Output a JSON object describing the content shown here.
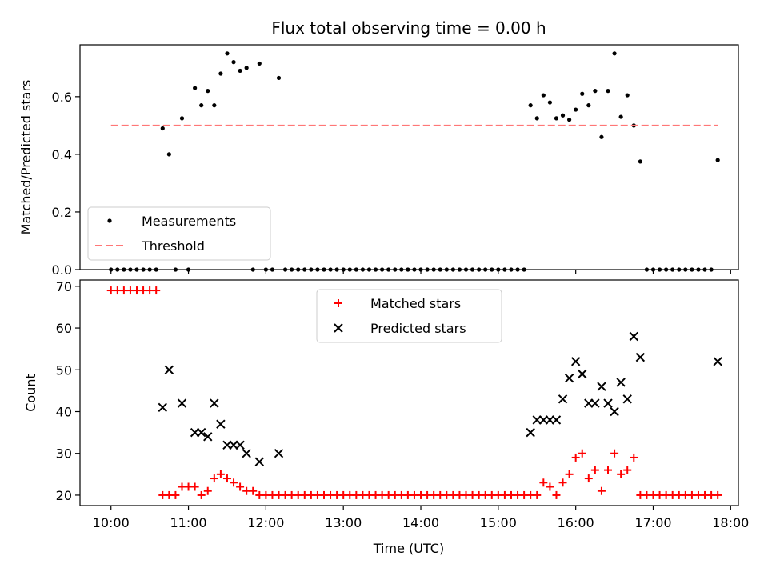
{
  "chart_data": [
    {
      "type": "scatter",
      "title": "Flux total observing time = 0.00 h",
      "xlabel": "",
      "ylabel": "Matched/Predicted stars",
      "xlim": [
        "09:36",
        "18:06"
      ],
      "ylim": [
        0,
        0.78
      ],
      "yticks": [
        0.0,
        0.2,
        0.4,
        0.6
      ],
      "grid": false,
      "legend_position": "lower-left",
      "series": [
        {
          "name": "Measurements",
          "kind": "scatter",
          "color": "#000000",
          "points": [
            [
              "10:00",
              0
            ],
            [
              "10:05",
              0
            ],
            [
              "10:10",
              0
            ],
            [
              "10:15",
              0
            ],
            [
              "10:20",
              0
            ],
            [
              "10:25",
              0
            ],
            [
              "10:30",
              0
            ],
            [
              "10:35",
              0
            ],
            [
              "10:40",
              0.49
            ],
            [
              "10:45",
              0.4
            ],
            [
              "10:50",
              0
            ],
            [
              "10:55",
              0.525
            ],
            [
              "11:00",
              0
            ],
            [
              "11:05",
              0.63
            ],
            [
              "11:10",
              0.57
            ],
            [
              "11:15",
              0.62
            ],
            [
              "11:20",
              0.57
            ],
            [
              "11:25",
              0.68
            ],
            [
              "11:30",
              0.75
            ],
            [
              "11:35",
              0.72
            ],
            [
              "11:40",
              0.69
            ],
            [
              "11:45",
              0.7
            ],
            [
              "11:50",
              0
            ],
            [
              "11:55",
              0.715
            ],
            [
              "12:00",
              0
            ],
            [
              "12:05",
              0
            ],
            [
              "12:10",
              0.665
            ],
            [
              "12:15",
              0
            ],
            [
              "12:20",
              0
            ],
            [
              "12:25",
              0
            ],
            [
              "12:30",
              0
            ],
            [
              "12:35",
              0
            ],
            [
              "12:40",
              0
            ],
            [
              "12:45",
              0
            ],
            [
              "12:50",
              0
            ],
            [
              "12:55",
              0
            ],
            [
              "13:00",
              0
            ],
            [
              "13:05",
              0
            ],
            [
              "13:10",
              0
            ],
            [
              "13:15",
              0
            ],
            [
              "13:20",
              0
            ],
            [
              "13:25",
              0
            ],
            [
              "13:30",
              0
            ],
            [
              "13:35",
              0
            ],
            [
              "13:40",
              0
            ],
            [
              "13:45",
              0
            ],
            [
              "13:50",
              0
            ],
            [
              "13:55",
              0
            ],
            [
              "14:00",
              0
            ],
            [
              "14:05",
              0
            ],
            [
              "14:10",
              0
            ],
            [
              "14:15",
              0
            ],
            [
              "14:20",
              0
            ],
            [
              "14:25",
              0
            ],
            [
              "14:30",
              0
            ],
            [
              "14:35",
              0
            ],
            [
              "14:40",
              0
            ],
            [
              "14:45",
              0
            ],
            [
              "14:50",
              0
            ],
            [
              "14:55",
              0
            ],
            [
              "15:00",
              0
            ],
            [
              "15:05",
              0
            ],
            [
              "15:10",
              0
            ],
            [
              "15:15",
              0
            ],
            [
              "15:20",
              0
            ],
            [
              "15:25",
              0.57
            ],
            [
              "15:30",
              0.525
            ],
            [
              "15:35",
              0.605
            ],
            [
              "15:40",
              0.58
            ],
            [
              "15:45",
              0.525
            ],
            [
              "15:50",
              0.535
            ],
            [
              "15:55",
              0.52
            ],
            [
              "16:00",
              0.555
            ],
            [
              "16:05",
              0.61
            ],
            [
              "16:10",
              0.57
            ],
            [
              "16:15",
              0.62
            ],
            [
              "16:20",
              0.46
            ],
            [
              "16:25",
              0.62
            ],
            [
              "16:30",
              0.75
            ],
            [
              "16:35",
              0.53
            ],
            [
              "16:40",
              0.605
            ],
            [
              "16:45",
              0.5
            ],
            [
              "16:50",
              0.375
            ],
            [
              "16:55",
              0
            ],
            [
              "17:00",
              0
            ],
            [
              "17:05",
              0
            ],
            [
              "17:10",
              0
            ],
            [
              "17:15",
              0
            ],
            [
              "17:20",
              0
            ],
            [
              "17:25",
              0
            ],
            [
              "17:30",
              0
            ],
            [
              "17:35",
              0
            ],
            [
              "17:40",
              0
            ],
            [
              "17:45",
              0
            ],
            [
              "17:50",
              0.38
            ]
          ]
        },
        {
          "name": "Threshold",
          "kind": "line",
          "style": "dashed",
          "color": "#ff7777",
          "points": [
            [
              "10:00",
              0.5
            ],
            [
              "17:50",
              0.5
            ]
          ]
        }
      ]
    },
    {
      "type": "scatter",
      "title": "",
      "xlabel": "Time (UTC)",
      "ylabel": "Count",
      "xlim": [
        "09:36",
        "18:06"
      ],
      "ylim": [
        17.5,
        71.5
      ],
      "yticks": [
        20,
        30,
        40,
        50,
        60,
        70
      ],
      "xticks": [
        "10:00",
        "11:00",
        "12:00",
        "13:00",
        "14:00",
        "15:00",
        "16:00",
        "17:00",
        "18:00"
      ],
      "grid": false,
      "legend_position": "upper-center",
      "series": [
        {
          "name": "Matched stars",
          "kind": "plus",
          "color": "#ff0000",
          "points": [
            [
              "10:00",
              69
            ],
            [
              "10:05",
              69
            ],
            [
              "10:10",
              69
            ],
            [
              "10:15",
              69
            ],
            [
              "10:20",
              69
            ],
            [
              "10:25",
              69
            ],
            [
              "10:30",
              69
            ],
            [
              "10:35",
              69
            ],
            [
              "10:40",
              20
            ],
            [
              "10:45",
              20
            ],
            [
              "10:50",
              20
            ],
            [
              "10:55",
              22
            ],
            [
              "11:00",
              22
            ],
            [
              "11:05",
              22
            ],
            [
              "11:10",
              20
            ],
            [
              "11:15",
              21
            ],
            [
              "11:20",
              24
            ],
            [
              "11:25",
              25
            ],
            [
              "11:30",
              24
            ],
            [
              "11:35",
              23
            ],
            [
              "11:40",
              22
            ],
            [
              "11:45",
              21
            ],
            [
              "11:50",
              21
            ],
            [
              "11:55",
              20
            ],
            [
              "12:00",
              20
            ],
            [
              "12:05",
              20
            ],
            [
              "12:10",
              20
            ],
            [
              "12:15",
              20
            ],
            [
              "12:20",
              20
            ],
            [
              "12:25",
              20
            ],
            [
              "12:30",
              20
            ],
            [
              "12:35",
              20
            ],
            [
              "12:40",
              20
            ],
            [
              "12:45",
              20
            ],
            [
              "12:50",
              20
            ],
            [
              "12:55",
              20
            ],
            [
              "13:00",
              20
            ],
            [
              "13:05",
              20
            ],
            [
              "13:10",
              20
            ],
            [
              "13:15",
              20
            ],
            [
              "13:20",
              20
            ],
            [
              "13:25",
              20
            ],
            [
              "13:30",
              20
            ],
            [
              "13:35",
              20
            ],
            [
              "13:40",
              20
            ],
            [
              "13:45",
              20
            ],
            [
              "13:50",
              20
            ],
            [
              "13:55",
              20
            ],
            [
              "14:00",
              20
            ],
            [
              "14:05",
              20
            ],
            [
              "14:10",
              20
            ],
            [
              "14:15",
              20
            ],
            [
              "14:20",
              20
            ],
            [
              "14:25",
              20
            ],
            [
              "14:30",
              20
            ],
            [
              "14:35",
              20
            ],
            [
              "14:40",
              20
            ],
            [
              "14:45",
              20
            ],
            [
              "14:50",
              20
            ],
            [
              "14:55",
              20
            ],
            [
              "15:00",
              20
            ],
            [
              "15:05",
              20
            ],
            [
              "15:10",
              20
            ],
            [
              "15:15",
              20
            ],
            [
              "15:20",
              20
            ],
            [
              "15:25",
              20
            ],
            [
              "15:30",
              20
            ],
            [
              "15:35",
              23
            ],
            [
              "15:40",
              22
            ],
            [
              "15:45",
              20
            ],
            [
              "15:50",
              23
            ],
            [
              "15:55",
              25
            ],
            [
              "16:00",
              29
            ],
            [
              "16:05",
              30
            ],
            [
              "16:10",
              24
            ],
            [
              "16:15",
              26
            ],
            [
              "16:20",
              21
            ],
            [
              "16:25",
              26
            ],
            [
              "16:30",
              30
            ],
            [
              "16:35",
              25
            ],
            [
              "16:40",
              26
            ],
            [
              "16:45",
              29
            ],
            [
              "16:50",
              20
            ],
            [
              "16:55",
              20
            ],
            [
              "17:00",
              20
            ],
            [
              "17:05",
              20
            ],
            [
              "17:10",
              20
            ],
            [
              "17:15",
              20
            ],
            [
              "17:20",
              20
            ],
            [
              "17:25",
              20
            ],
            [
              "17:30",
              20
            ],
            [
              "17:35",
              20
            ],
            [
              "17:40",
              20
            ],
            [
              "17:45",
              20
            ],
            [
              "17:50",
              20
            ]
          ]
        },
        {
          "name": "Predicted stars",
          "kind": "x",
          "color": "#000000",
          "points": [
            [
              "10:40",
              41
            ],
            [
              "10:45",
              50
            ],
            [
              "10:55",
              42
            ],
            [
              "11:05",
              35
            ],
            [
              "11:10",
              35
            ],
            [
              "11:15",
              34
            ],
            [
              "11:20",
              42
            ],
            [
              "11:25",
              37
            ],
            [
              "11:30",
              32
            ],
            [
              "11:35",
              32
            ],
            [
              "11:40",
              32
            ],
            [
              "11:45",
              30
            ],
            [
              "11:55",
              28
            ],
            [
              "12:10",
              30
            ],
            [
              "15:25",
              35
            ],
            [
              "15:30",
              38
            ],
            [
              "15:35",
              38
            ],
            [
              "15:40",
              38
            ],
            [
              "15:45",
              38
            ],
            [
              "15:50",
              43
            ],
            [
              "15:55",
              48
            ],
            [
              "16:00",
              52
            ],
            [
              "16:05",
              49
            ],
            [
              "16:10",
              42
            ],
            [
              "16:15",
              42
            ],
            [
              "16:20",
              46
            ],
            [
              "16:25",
              42
            ],
            [
              "16:30",
              40
            ],
            [
              "16:35",
              47
            ],
            [
              "16:40",
              43
            ],
            [
              "16:45",
              58
            ],
            [
              "16:50",
              53
            ],
            [
              "17:50",
              52
            ]
          ]
        }
      ]
    }
  ]
}
